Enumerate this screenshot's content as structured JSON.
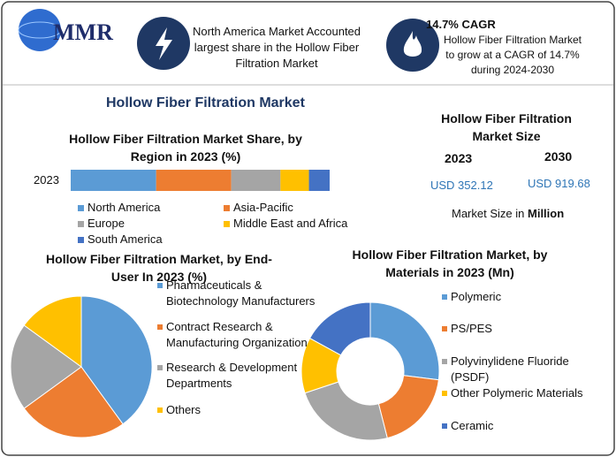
{
  "header": {
    "logo": "MMR",
    "highlight": "North America Market Accounted largest share in the Hollow Fiber Filtration Market",
    "cagr_title": "14.7% CAGR",
    "cagr_text": "Hollow Fiber Filtration Market to grow at a CAGR of 14.7% during 2024-2030"
  },
  "title": "Hollow Fiber Filtration Market",
  "market_size": {
    "title": "Hollow Fiber Filtration Market Size",
    "years": [
      "2023",
      "2030"
    ],
    "values": [
      "USD 352.12",
      "USD 919.68"
    ],
    "note": "Market Size in",
    "note_unit": "Million"
  },
  "chart_data": [
    {
      "type": "bar",
      "title": "Hollow Fiber Filtration Market Share, by Region in 2023 (%)",
      "categories": [
        "2023"
      ],
      "xlim": [
        0,
        100
      ],
      "series": [
        {
          "name": "North America",
          "color": "#5b9bd5",
          "values": [
            33
          ]
        },
        {
          "name": "Asia-Pacific",
          "color": "#ed7d31",
          "values": [
            29
          ]
        },
        {
          "name": "Europe",
          "color": "#a5a5a5",
          "values": [
            19
          ]
        },
        {
          "name": "Middle East and Africa",
          "color": "#ffc000",
          "values": [
            11
          ]
        },
        {
          "name": "South America",
          "color": "#4472c4",
          "values": [
            8
          ]
        }
      ]
    },
    {
      "type": "pie",
      "title": "Hollow Fiber Filtration Market, by End-User In 2023 (%)",
      "categories": [
        "Pharmaceuticals & Biotechnology Manufacturers",
        "Contract Research & Manufacturing Organization",
        "Research & Development Departments",
        "Others"
      ],
      "values": [
        40,
        25,
        20,
        15
      ],
      "colors": [
        "#5b9bd5",
        "#ed7d31",
        "#a5a5a5",
        "#ffc000"
      ]
    },
    {
      "type": "donut",
      "title": "Hollow Fiber Filtration Market, by Materials in 2023 (Mn)",
      "categories": [
        "Polymeric",
        "PS/PES",
        "Polyvinylidene Fluoride (PSDF)",
        "Other Polymeric Materials",
        "Ceramic"
      ],
      "values": [
        95,
        67,
        84,
        46,
        60
      ],
      "colors": [
        "#5b9bd5",
        "#ed7d31",
        "#a5a5a5",
        "#ffc000",
        "#4472c4"
      ]
    }
  ]
}
